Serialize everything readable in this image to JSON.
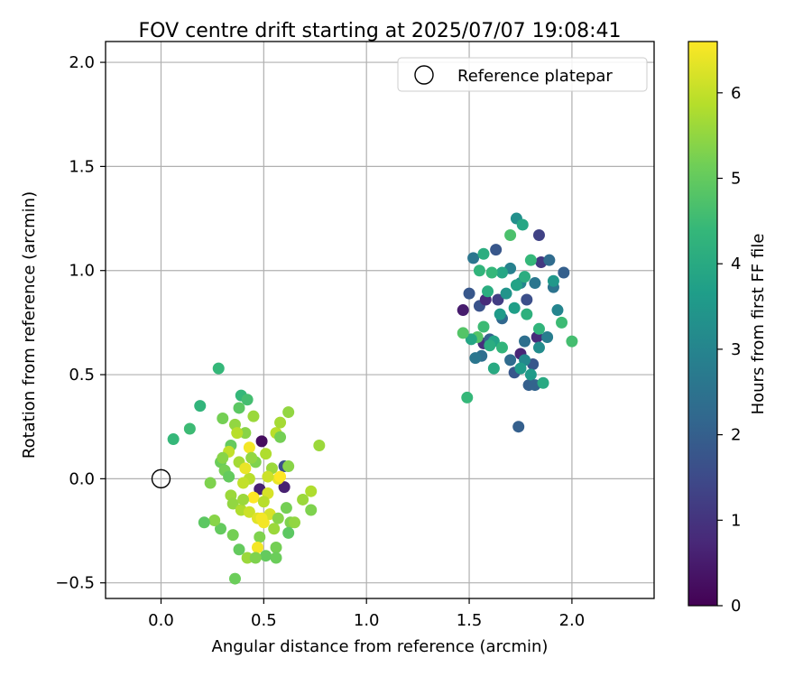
{
  "chart_data": {
    "type": "scatter",
    "title": "FOV centre drift starting at 2025/07/07 19:08:41",
    "xlabel": "Angular distance from reference (arcmin)",
    "ylabel": "Rotation from reference (arcmin)",
    "xlim": [
      -0.27,
      2.4
    ],
    "ylim": [
      -0.575,
      2.1
    ],
    "xticks": [
      0.0,
      0.5,
      1.0,
      1.5,
      2.0
    ],
    "xtick_labels": [
      "0.0",
      "0.5",
      "1.0",
      "1.5",
      "2.0"
    ],
    "yticks": [
      -0.5,
      0.0,
      0.5,
      1.0,
      1.5,
      2.0
    ],
    "ytick_labels": [
      "−0.5",
      "0.0",
      "0.5",
      "1.0",
      "1.5",
      "2.0"
    ],
    "grid": true,
    "legend": {
      "placement": "top-right",
      "entries": [
        "Reference platepar"
      ]
    },
    "reference_point": {
      "x": 0.0,
      "y": 0.0,
      "marker": "open-circle",
      "label": "Reference platepar"
    },
    "colorbar": {
      "label": "Hours from first FF file",
      "range": [
        0,
        6.6
      ],
      "ticks": [
        0,
        1,
        2,
        3,
        4,
        5,
        6
      ],
      "tick_labels": [
        "0",
        "1",
        "2",
        "3",
        "4",
        "5",
        "6"
      ],
      "colormap": "viridis",
      "stops": [
        "#440154",
        "#482878",
        "#3e4989",
        "#31688e",
        "#26828e",
        "#1f9e89",
        "#35b779",
        "#6ece58",
        "#b5de2b",
        "#fde725"
      ]
    },
    "points": [
      [
        1.47,
        0.81,
        0.5
      ],
      [
        1.5,
        0.89,
        1.8
      ],
      [
        1.52,
        1.06,
        2.6
      ],
      [
        1.55,
        0.83,
        1.7
      ],
      [
        1.57,
        0.65,
        0.9
      ],
      [
        1.58,
        0.86,
        0.8
      ],
      [
        1.6,
        0.67,
        2.1
      ],
      [
        1.63,
        1.1,
        1.8
      ],
      [
        1.64,
        0.86,
        1.2
      ],
      [
        1.66,
        0.77,
        2.2
      ],
      [
        1.7,
        0.57,
        2.3
      ],
      [
        1.72,
        0.51,
        1.8
      ],
      [
        1.74,
        0.25,
        2.0
      ],
      [
        1.75,
        0.6,
        0.7
      ],
      [
        1.77,
        0.66,
        2.4
      ],
      [
        1.78,
        0.86,
        1.6
      ],
      [
        1.79,
        0.45,
        2.0
      ],
      [
        1.81,
        0.55,
        1.8
      ],
      [
        1.83,
        0.68,
        0.8
      ],
      [
        1.84,
        1.17,
        1.3
      ],
      [
        1.85,
        1.04,
        1.1
      ],
      [
        1.89,
        1.05,
        2.3
      ],
      [
        1.91,
        0.92,
        2.5
      ],
      [
        1.96,
        0.99,
        2.0
      ],
      [
        1.88,
        0.68,
        2.8
      ],
      [
        1.93,
        0.81,
        3.0
      ],
      [
        1.82,
        0.94,
        2.6
      ],
      [
        1.75,
        0.94,
        3.0
      ],
      [
        1.7,
        1.01,
        2.9
      ],
      [
        1.68,
        0.89,
        3.4
      ],
      [
        1.66,
        0.99,
        3.9
      ],
      [
        1.65,
        0.79,
        3.6
      ],
      [
        1.62,
        0.66,
        3.8
      ],
      [
        1.61,
        0.99,
        4.4
      ],
      [
        1.59,
        0.9,
        4.1
      ],
      [
        1.57,
        1.08,
        4.1
      ],
      [
        1.57,
        0.73,
        4.5
      ],
      [
        1.56,
        0.59,
        2.4
      ],
      [
        1.55,
        1.0,
        4.3
      ],
      [
        1.54,
        0.68,
        4.8
      ],
      [
        1.53,
        0.58,
        2.6
      ],
      [
        1.51,
        0.67,
        3.9
      ],
      [
        1.49,
        0.39,
        4.4
      ],
      [
        1.47,
        0.7,
        4.8
      ],
      [
        1.6,
        0.64,
        4.1
      ],
      [
        1.62,
        0.53,
        4.0
      ],
      [
        1.66,
        0.63,
        4.3
      ],
      [
        1.7,
        1.17,
        4.7
      ],
      [
        1.73,
        1.25,
        3.3
      ],
      [
        1.76,
        1.22,
        3.9
      ],
      [
        1.72,
        0.82,
        3.7
      ],
      [
        1.77,
        0.97,
        4.1
      ],
      [
        1.8,
        1.05,
        4.4
      ],
      [
        1.8,
        0.5,
        3.6
      ],
      [
        1.82,
        0.45,
        2.1
      ],
      [
        1.86,
        0.46,
        4.0
      ],
      [
        1.84,
        0.72,
        4.3
      ],
      [
        1.91,
        0.95,
        3.5
      ],
      [
        1.95,
        0.75,
        4.5
      ],
      [
        2.0,
        0.66,
        4.6
      ],
      [
        1.77,
        0.57,
        3.1
      ],
      [
        1.75,
        0.53,
        3.6
      ],
      [
        1.73,
        0.93,
        3.8
      ],
      [
        1.78,
        0.79,
        4.2
      ],
      [
        1.84,
        0.63,
        3.2
      ],
      [
        0.06,
        0.19,
        4.4
      ],
      [
        0.14,
        0.24,
        4.5
      ],
      [
        0.19,
        0.35,
        4.3
      ],
      [
        0.28,
        0.53,
        4.4
      ],
      [
        0.38,
        0.34,
        4.9
      ],
      [
        0.39,
        0.4,
        4.4
      ],
      [
        0.42,
        0.38,
        4.6
      ],
      [
        0.3,
        0.29,
        5.2
      ],
      [
        0.34,
        0.16,
        5.0
      ],
      [
        0.29,
        0.08,
        5.1
      ],
      [
        0.36,
        0.26,
        5.5
      ],
      [
        0.41,
        0.22,
        5.4
      ],
      [
        0.45,
        0.3,
        5.6
      ],
      [
        0.49,
        0.18,
        0.2
      ],
      [
        0.51,
        0.12,
        5.8
      ],
      [
        0.56,
        0.22,
        5.9
      ],
      [
        0.58,
        0.27,
        5.7
      ],
      [
        0.62,
        0.32,
        5.5
      ],
      [
        0.58,
        0.2,
        5.2
      ],
      [
        0.54,
        0.05,
        5.6
      ],
      [
        0.6,
        0.06,
        1.6
      ],
      [
        0.48,
        -0.05,
        0.6
      ],
      [
        0.6,
        -0.04,
        0.6
      ],
      [
        0.46,
        0.08,
        5.3
      ],
      [
        0.52,
        -0.07,
        6.2
      ],
      [
        0.57,
        0.0,
        6.4
      ],
      [
        0.43,
        0.0,
        5.9
      ],
      [
        0.4,
        -0.02,
        6.0
      ],
      [
        0.38,
        0.08,
        5.7
      ],
      [
        0.33,
        0.13,
        6.0
      ],
      [
        0.3,
        0.1,
        5.4
      ],
      [
        0.31,
        0.04,
        5.2
      ],
      [
        0.34,
        -0.08,
        5.6
      ],
      [
        0.24,
        -0.02,
        5.3
      ],
      [
        0.35,
        -0.12,
        5.5
      ],
      [
        0.39,
        -0.15,
        5.8
      ],
      [
        0.43,
        -0.16,
        6.1
      ],
      [
        0.47,
        -0.19,
        6.3
      ],
      [
        0.5,
        -0.21,
        6.5
      ],
      [
        0.53,
        -0.17,
        6.2
      ],
      [
        0.55,
        -0.24,
        5.6
      ],
      [
        0.57,
        -0.19,
        5.4
      ],
      [
        0.61,
        -0.14,
        5.2
      ],
      [
        0.63,
        -0.21,
        5.3
      ],
      [
        0.62,
        -0.26,
        4.9
      ],
      [
        0.56,
        -0.33,
        5.2
      ],
      [
        0.51,
        -0.37,
        5.0
      ],
      [
        0.48,
        -0.28,
        5.3
      ],
      [
        0.47,
        -0.33,
        6.5
      ],
      [
        0.42,
        -0.38,
        5.6
      ],
      [
        0.38,
        -0.34,
        5.0
      ],
      [
        0.35,
        -0.27,
        5.2
      ],
      [
        0.29,
        -0.24,
        5.0
      ],
      [
        0.26,
        -0.2,
        5.4
      ],
      [
        0.21,
        -0.21,
        4.9
      ],
      [
        0.36,
        -0.48,
        5.1
      ],
      [
        0.46,
        -0.38,
        5.3
      ],
      [
        0.56,
        -0.38,
        5.1
      ],
      [
        0.73,
        -0.15,
        5.3
      ],
      [
        0.69,
        -0.1,
        5.6
      ],
      [
        0.73,
        -0.06,
        5.8
      ],
      [
        0.65,
        -0.21,
        5.5
      ],
      [
        0.77,
        0.16,
        5.6
      ],
      [
        0.43,
        0.15,
        6.5
      ],
      [
        0.41,
        0.05,
        6.4
      ],
      [
        0.45,
        -0.09,
        6.6
      ],
      [
        0.49,
        -0.19,
        6.5
      ],
      [
        0.58,
        0.01,
        6.6
      ],
      [
        0.62,
        0.06,
        5.4
      ],
      [
        0.37,
        0.22,
        5.9
      ],
      [
        0.33,
        0.01,
        5.0
      ],
      [
        0.44,
        0.1,
        5.5
      ],
      [
        0.5,
        -0.11,
        5.9
      ],
      [
        0.4,
        -0.1,
        5.6
      ],
      [
        0.52,
        0.01,
        6.1
      ]
    ]
  }
}
